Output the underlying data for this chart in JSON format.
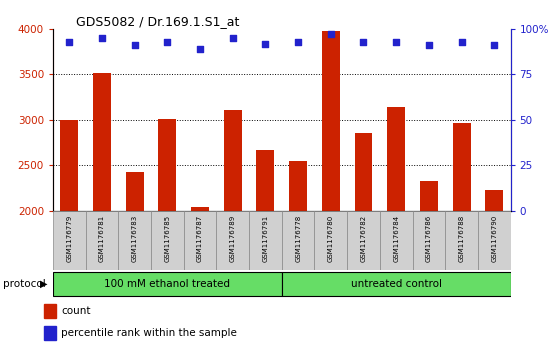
{
  "title": "GDS5082 / Dr.169.1.S1_at",
  "samples": [
    "GSM1176779",
    "GSM1176781",
    "GSM1176783",
    "GSM1176785",
    "GSM1176787",
    "GSM1176789",
    "GSM1176791",
    "GSM1176778",
    "GSM1176780",
    "GSM1176782",
    "GSM1176784",
    "GSM1176786",
    "GSM1176788",
    "GSM1176790"
  ],
  "counts": [
    3000,
    3520,
    2430,
    3010,
    2040,
    3110,
    2670,
    2550,
    3980,
    2850,
    3145,
    2330,
    2960,
    2230
  ],
  "percentiles": [
    93,
    95,
    91,
    93,
    89,
    95,
    92,
    93,
    97,
    93,
    93,
    91,
    93,
    91
  ],
  "group1_label": "100 mM ethanol treated",
  "group2_label": "untreated control",
  "group1_count": 7,
  "group2_count": 7,
  "bar_color": "#cc2200",
  "dot_color": "#2222cc",
  "group_bg": "#66dd66",
  "sample_bg": "#d0d0d0",
  "ylim_left": [
    2000,
    4000
  ],
  "ylim_right": [
    0,
    100
  ],
  "yticks_left": [
    2000,
    2500,
    3000,
    3500,
    4000
  ],
  "yticks_right": [
    0,
    25,
    50,
    75,
    100
  ],
  "ytick_labels_right": [
    "0",
    "25",
    "50",
    "75",
    "100%"
  ],
  "grid_lines": [
    2500,
    3000,
    3500
  ],
  "protocol_label": "protocol",
  "legend_count_label": "count",
  "legend_pct_label": "percentile rank within the sample"
}
